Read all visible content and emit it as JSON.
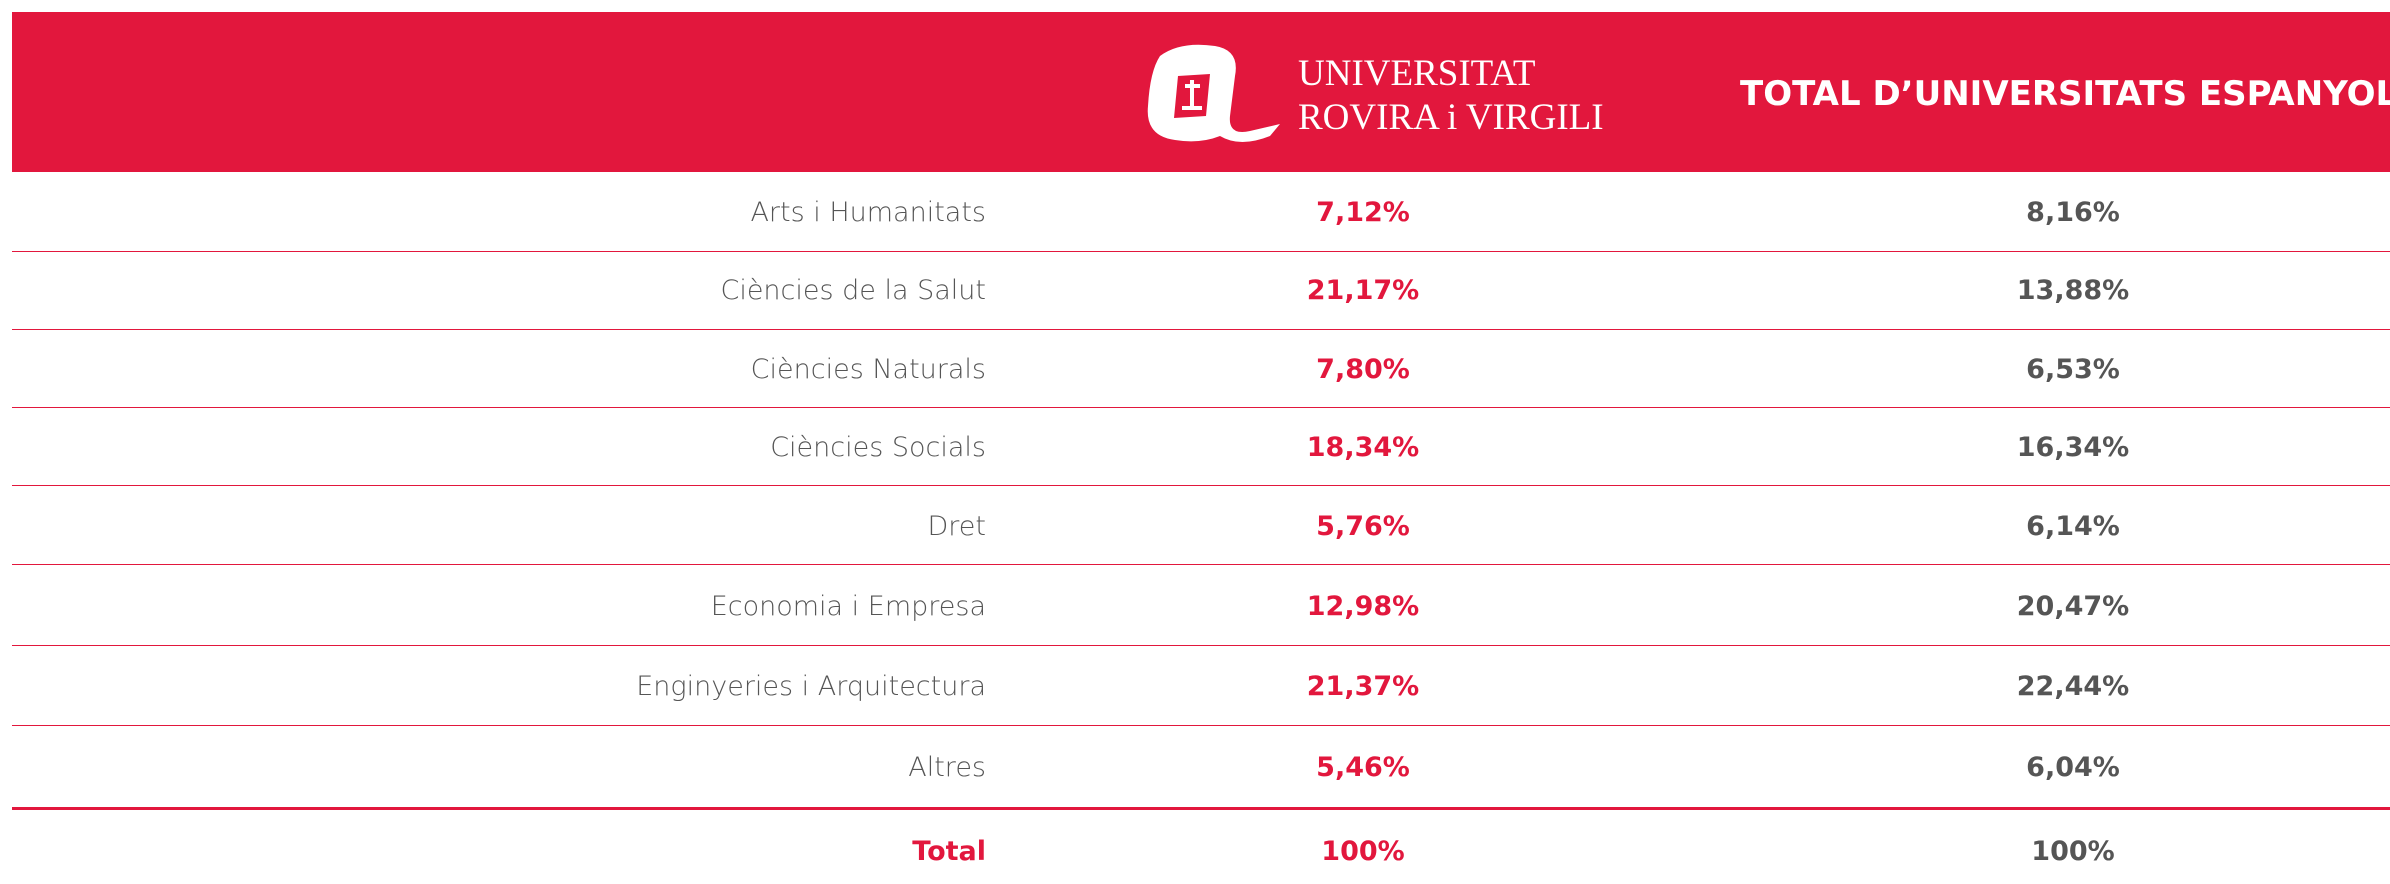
{
  "header": {
    "logo_lines": [
      "UNIVERSITAT",
      "ROVIRA i VIRGILI"
    ],
    "total_column": "TOTAL D’UNIVERSITATS ESPANYOLES"
  },
  "table": {
    "rows": [
      [
        "Arts i Humanitats",
        "7,12%",
        "8,16%"
      ],
      [
        "Ciències de la Salut",
        "21,17%",
        "13,88%"
      ],
      [
        "Ciències Naturals",
        "7,80%",
        "6,53%"
      ],
      [
        "Ciències Socials",
        "18,34%",
        "16,34%"
      ],
      [
        "Dret",
        "5,76%",
        "6,14%"
      ],
      [
        "Economia i Empresa",
        "12,98%",
        "20,47%"
      ],
      [
        "Enginyeries i Arquitectura",
        "21,37%",
        "22,44%"
      ],
      [
        "Altres",
        "5,46%",
        "6,04%"
      ]
    ],
    "total_row": [
      "Total",
      "100%",
      "100%"
    ]
  }
}
